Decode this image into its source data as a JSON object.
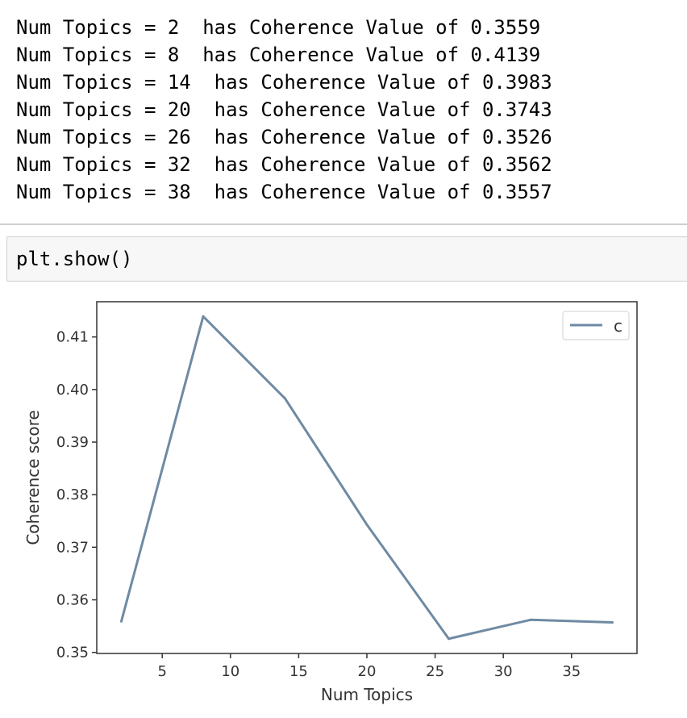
{
  "output": {
    "lines": [
      "Num Topics = 2  has Coherence Value of 0.3559",
      "Num Topics = 8  has Coherence Value of 0.4139",
      "Num Topics = 14  has Coherence Value of 0.3983",
      "Num Topics = 20  has Coherence Value of 0.3743",
      "Num Topics = 26  has Coherence Value of 0.3526",
      "Num Topics = 32  has Coherence Value of 0.3562",
      "Num Topics = 38  has Coherence Value of 0.3557"
    ]
  },
  "input_cell": {
    "code": "plt.show()"
  },
  "chart_data": {
    "type": "line",
    "title": "",
    "xlabel": "Num Topics",
    "ylabel": "Coherence score",
    "x": [
      2,
      8,
      14,
      20,
      26,
      32,
      38
    ],
    "series": [
      {
        "name": "c",
        "values": [
          0.3559,
          0.4139,
          0.3983,
          0.3743,
          0.3526,
          0.3562,
          0.3557
        ],
        "color": "#6f8aa3"
      }
    ],
    "xlim": [
      0.2,
      39.8
    ],
    "ylim": [
      0.3498,
      0.4167
    ],
    "xticks": [
      5,
      10,
      15,
      20,
      25,
      30,
      35
    ],
    "xtick_labels": [
      "5",
      "10",
      "15",
      "20",
      "25",
      "30",
      "35"
    ],
    "yticks": [
      0.35,
      0.36,
      0.37,
      0.38,
      0.39,
      0.4,
      0.41
    ],
    "ytick_labels": [
      "0.35",
      "0.36",
      "0.37",
      "0.38",
      "0.39",
      "0.40",
      "0.41"
    ],
    "grid": false,
    "legend": "top-right"
  }
}
